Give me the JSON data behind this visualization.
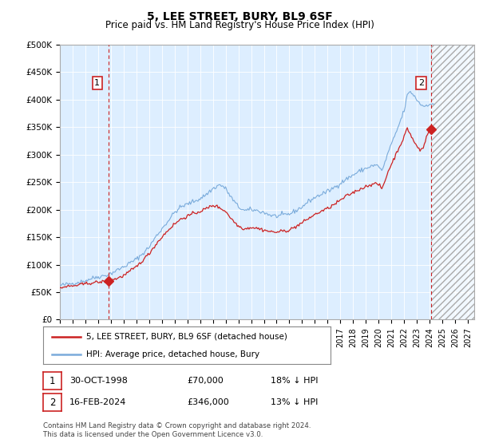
{
  "title": "5, LEE STREET, BURY, BL9 6SF",
  "subtitle": "Price paid vs. HM Land Registry's House Price Index (HPI)",
  "ylim": [
    0,
    500000
  ],
  "yticks": [
    0,
    50000,
    100000,
    150000,
    200000,
    250000,
    300000,
    350000,
    400000,
    450000,
    500000
  ],
  "ytick_labels": [
    "£0",
    "£50K",
    "£100K",
    "£150K",
    "£200K",
    "£250K",
    "£300K",
    "£350K",
    "£400K",
    "£450K",
    "£500K"
  ],
  "xlim_start": 1995.0,
  "xlim_end": 2027.5,
  "xtick_years": [
    1995,
    1996,
    1997,
    1998,
    1999,
    2000,
    2001,
    2002,
    2003,
    2004,
    2005,
    2006,
    2007,
    2008,
    2009,
    2010,
    2011,
    2012,
    2013,
    2014,
    2015,
    2016,
    2017,
    2018,
    2019,
    2020,
    2021,
    2022,
    2023,
    2024,
    2025,
    2026,
    2027
  ],
  "hpi_color": "#7aabdb",
  "price_color": "#cc2222",
  "vline_color": "#cc2222",
  "chart_bg": "#ddeeff",
  "sale1_x": 1998.83,
  "sale1_y": 70000,
  "sale2_x": 2024.12,
  "sale2_y": 346000,
  "legend_line1": "5, LEE STREET, BURY, BL9 6SF (detached house)",
  "legend_line2": "HPI: Average price, detached house, Bury",
  "table_row1": [
    "1",
    "30-OCT-1998",
    "£70,000",
    "18% ↓ HPI"
  ],
  "table_row2": [
    "2",
    "16-FEB-2024",
    "£346,000",
    "13% ↓ HPI"
  ],
  "footer": "Contains HM Land Registry data © Crown copyright and database right 2024.\nThis data is licensed under the Open Government Licence v3.0."
}
